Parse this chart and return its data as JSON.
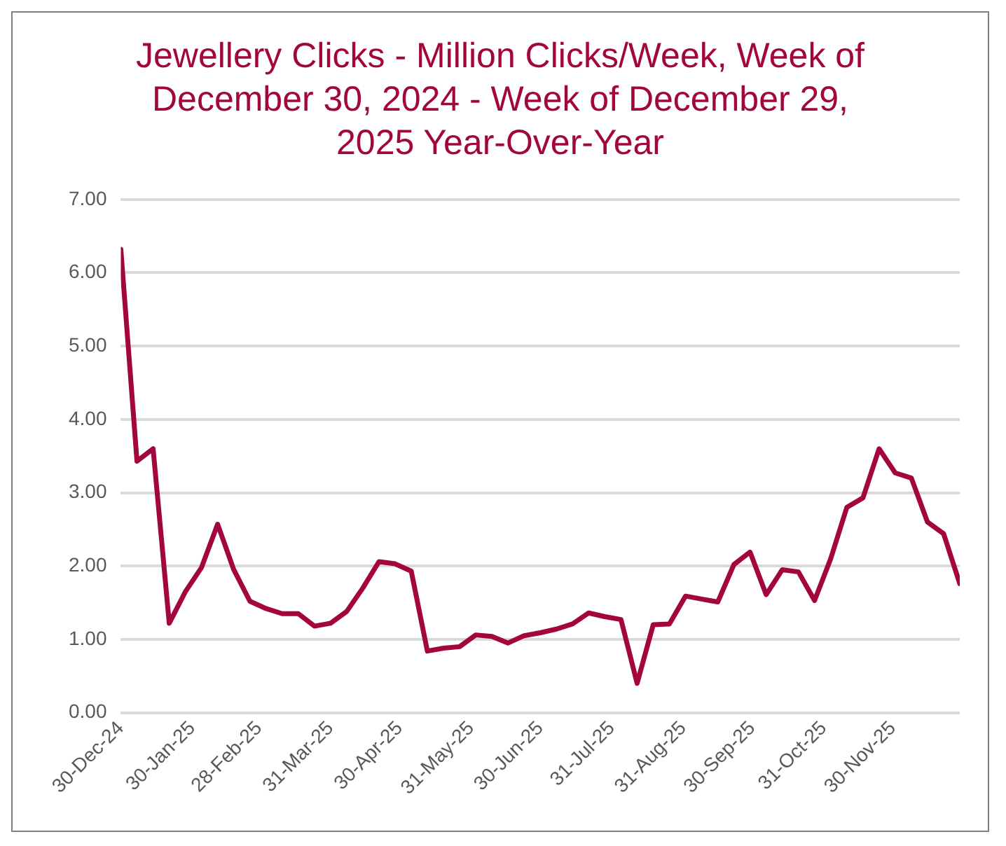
{
  "chart_data": {
    "type": "line",
    "title": "Jewellery Clicks - Million Clicks/Week, Week of December 30, 2024 - Week of December 29, 2025 Year-Over-Year",
    "x": [
      "2024-12-30",
      "2025-01-06",
      "2025-01-13",
      "2025-01-20",
      "2025-01-27",
      "2025-02-03",
      "2025-02-10",
      "2025-02-17",
      "2025-02-24",
      "2025-03-03",
      "2025-03-10",
      "2025-03-17",
      "2025-03-24",
      "2025-03-31",
      "2025-04-07",
      "2025-04-14",
      "2025-04-21",
      "2025-04-28",
      "2025-05-05",
      "2025-05-12",
      "2025-05-19",
      "2025-05-26",
      "2025-06-02",
      "2025-06-09",
      "2025-06-16",
      "2025-06-23",
      "2025-06-30",
      "2025-07-07",
      "2025-07-14",
      "2025-07-21",
      "2025-07-28",
      "2025-08-04",
      "2025-08-11",
      "2025-08-18",
      "2025-08-25",
      "2025-09-01",
      "2025-09-08",
      "2025-09-15",
      "2025-09-22",
      "2025-09-29",
      "2025-10-06",
      "2025-10-13",
      "2025-10-20",
      "2025-10-27",
      "2025-11-03",
      "2025-11-10",
      "2025-11-17",
      "2025-11-24",
      "2025-12-01",
      "2025-12-08",
      "2025-12-15",
      "2025-12-22",
      "2025-12-29"
    ],
    "series": [
      {
        "color": "#a3063f",
        "values": [
          6.32,
          3.43,
          3.6,
          1.22,
          1.65,
          1.98,
          2.57,
          1.95,
          1.52,
          1.42,
          1.35,
          1.35,
          1.18,
          1.22,
          1.38,
          1.7,
          2.06,
          2.03,
          1.93,
          0.84,
          0.88,
          0.9,
          1.06,
          1.04,
          0.95,
          1.05,
          1.09,
          1.14,
          1.21,
          1.36,
          1.31,
          1.27,
          0.4,
          1.2,
          1.21,
          1.59,
          1.55,
          1.51,
          2.02,
          2.19,
          1.61,
          1.95,
          1.92,
          1.53,
          2.1,
          2.8,
          2.93,
          3.6,
          3.27,
          3.2,
          2.6,
          2.44,
          1.76
        ]
      }
    ],
    "xlim": [
      "2024-12-30",
      "2025-12-29"
    ],
    "xticks": [
      {
        "value": "2024-12-30",
        "label": "30-Dec-24"
      },
      {
        "value": "2025-01-30",
        "label": "30-Jan-25"
      },
      {
        "value": "2025-02-28",
        "label": "28-Feb-25"
      },
      {
        "value": "2025-03-31",
        "label": "31-Mar-25"
      },
      {
        "value": "2025-04-30",
        "label": "30-Apr-25"
      },
      {
        "value": "2025-05-31",
        "label": "31-May-25"
      },
      {
        "value": "2025-06-30",
        "label": "30-Jun-25"
      },
      {
        "value": "2025-07-31",
        "label": "31-Jul-25"
      },
      {
        "value": "2025-08-31",
        "label": "31-Aug-25"
      },
      {
        "value": "2025-09-30",
        "label": "30-Sep-25"
      },
      {
        "value": "2025-10-31",
        "label": "31-Oct-25"
      },
      {
        "value": "2025-11-30",
        "label": "30-Nov-25"
      }
    ],
    "ylim": [
      0,
      7
    ],
    "yticks": [
      {
        "value": 0,
        "label": "0.00"
      },
      {
        "value": 1,
        "label": "1.00"
      },
      {
        "value": 2,
        "label": "2.00"
      },
      {
        "value": 3,
        "label": "3.00"
      },
      {
        "value": 4,
        "label": "4.00"
      },
      {
        "value": 5,
        "label": "5.00"
      },
      {
        "value": 6,
        "label": "6.00"
      },
      {
        "value": 7,
        "label": "7.00"
      }
    ],
    "grid": "y",
    "legend": false,
    "marker": "none",
    "line_style": "solid"
  }
}
